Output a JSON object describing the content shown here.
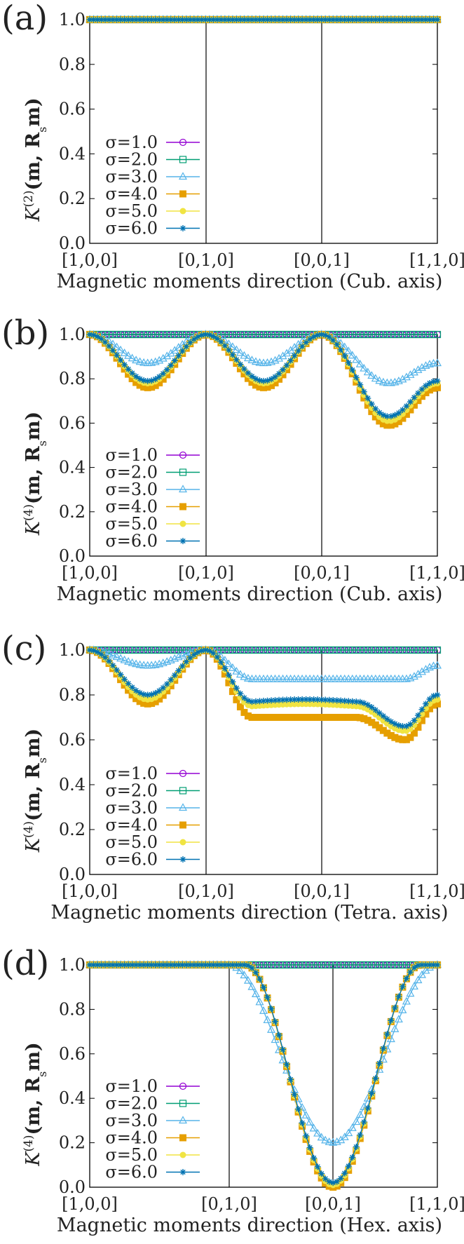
{
  "figure": {
    "legend_prefix": "σ=",
    "series_names": [
      "1.0",
      "2.0",
      "3.0",
      "4.0",
      "5.0",
      "6.0"
    ],
    "series_colors": [
      "#9400d3",
      "#009e73",
      "#56b4e9",
      "#e69f00",
      "#f0e442",
      "#0072b2"
    ],
    "series_markers": [
      "circle-open",
      "square-open",
      "triangle-open",
      "square-filled",
      "circle-filled",
      "star"
    ]
  },
  "chart_data": [
    {
      "type": "line",
      "panel_label": "(a)",
      "title": "",
      "xlabel": "Magnetic moments direction (Cub. axis)",
      "ylabel": "K(2)(m, Rsm)",
      "ylabel_main": "K",
      "ylabel_sup": "(2)",
      "ylabel_args": "(m, R",
      "ylabel_sub": "s",
      "ylabel_tail": "m)",
      "ylim": [
        0,
        1.0
      ],
      "yticks": [
        "0.0",
        "0.2",
        "0.4",
        "0.6",
        "0.8",
        "1.0"
      ],
      "xticks": [
        "[1,0,0]",
        "[0,1,0]",
        "[0,0,1]",
        "[1,1,0]"
      ],
      "segments": [
        "cub",
        "cub",
        "cub"
      ],
      "series": [
        {
          "name": "σ=1.0",
          "dips": [
            [
              1.0,
              1.0,
              1.0
            ]
          ]
        },
        {
          "name": "σ=2.0",
          "dips": [
            [
              1.0,
              1.0,
              1.0
            ]
          ]
        },
        {
          "name": "σ=3.0",
          "dips": [
            [
              1.0,
              1.0,
              1.0
            ]
          ]
        },
        {
          "name": "σ=4.0",
          "dips": [
            [
              1.0,
              1.0,
              1.0
            ]
          ]
        },
        {
          "name": "σ=5.0",
          "dips": [
            [
              1.0,
              1.0,
              1.0
            ]
          ]
        },
        {
          "name": "σ=6.0",
          "dips": [
            [
              1.0,
              1.0,
              1.0
            ]
          ]
        }
      ],
      "legend": "left"
    },
    {
      "type": "line",
      "panel_label": "(b)",
      "title": "",
      "xlabel": "Magnetic moments direction (Cub. axis)",
      "ylabel": "K(4)(m, Rsm)",
      "ylabel_main": "K",
      "ylabel_sup": "(4)",
      "ylabel_args": "(m, R",
      "ylabel_sub": "s",
      "ylabel_tail": "m)",
      "ylim": [
        0,
        1.0
      ],
      "yticks": [
        "0.0",
        "0.2",
        "0.4",
        "0.6",
        "0.8",
        "1.0"
      ],
      "xticks": [
        "[1,0,0]",
        "[0,1,0]",
        "[0,0,1]",
        "[1,1,0]"
      ],
      "segments_kind": "cub",
      "series": [
        {
          "name": "σ=1.0",
          "seg_min": [
            1.0,
            1.0,
            1.0
          ],
          "seg_end": 1.0
        },
        {
          "name": "σ=2.0",
          "seg_min": [
            1.0,
            1.0,
            1.0
          ],
          "seg_end": 1.0
        },
        {
          "name": "σ=3.0",
          "seg_min": [
            0.87,
            0.87,
            0.78
          ],
          "seg_end": 0.87
        },
        {
          "name": "σ=4.0",
          "seg_min": [
            0.76,
            0.76,
            0.59
          ],
          "seg_end": 0.76
        },
        {
          "name": "σ=5.0",
          "seg_min": [
            0.78,
            0.78,
            0.61
          ],
          "seg_end": 0.78
        },
        {
          "name": "σ=6.0",
          "seg_min": [
            0.79,
            0.79,
            0.63
          ],
          "seg_end": 0.79
        }
      ],
      "legend": "left"
    },
    {
      "type": "line",
      "panel_label": "(c)",
      "title": "",
      "xlabel": "Magnetic moments direction (Tetra. axis)",
      "ylabel": "K(4)(m, Rsm)",
      "ylabel_main": "K",
      "ylabel_sup": "(4)",
      "ylabel_args": "(m, R",
      "ylabel_sub": "s",
      "ylabel_tail": "m)",
      "ylim": [
        0,
        1.0
      ],
      "yticks": [
        "0.0",
        "0.2",
        "0.4",
        "0.6",
        "0.8",
        "1.0"
      ],
      "xticks": [
        "[1,0,0]",
        "[0,1,0]",
        "[0,0,1]",
        "[1,1,0]"
      ],
      "series": [
        {
          "name": "σ=1.0",
          "seg1_min": 1.0,
          "plateau_min": 1.0,
          "plateau_mid": 1.0,
          "seg3_min": 1.0,
          "end": 1.0
        },
        {
          "name": "σ=2.0",
          "seg1_min": 1.0,
          "plateau_min": 1.0,
          "plateau_mid": 1.0,
          "seg3_min": 1.0,
          "end": 1.0
        },
        {
          "name": "σ=3.0",
          "seg1_min": 0.93,
          "plateau_min": 0.87,
          "plateau_mid": 0.87,
          "seg3_min": 0.87,
          "end": 0.93
        },
        {
          "name": "σ=4.0",
          "seg1_min": 0.76,
          "plateau_min": 0.7,
          "plateau_mid": 0.7,
          "seg3_min": 0.6,
          "end": 0.76
        },
        {
          "name": "σ=5.0",
          "seg1_min": 0.78,
          "plateau_min": 0.75,
          "plateau_mid": 0.76,
          "seg3_min": 0.64,
          "end": 0.78
        },
        {
          "name": "σ=6.0",
          "seg1_min": 0.8,
          "plateau_min": 0.77,
          "plateau_mid": 0.78,
          "seg3_min": 0.66,
          "end": 0.8
        }
      ],
      "legend": "left"
    },
    {
      "type": "line",
      "panel_label": "(d)",
      "title": "",
      "xlabel": "Magnetic moments direction (Hex. axis)",
      "ylabel": "K(4)(m, Rsm)",
      "ylabel_main": "K",
      "ylabel_sup": "(4)",
      "ylabel_args": "(m, R",
      "ylabel_sub": "s",
      "ylabel_tail": "m)",
      "ylim": [
        0,
        1.0
      ],
      "yticks": [
        "0.0",
        "0.2",
        "0.4",
        "0.6",
        "0.8",
        "1.0"
      ],
      "xticks": [
        "[1,0,0]",
        "[0,1,0]",
        "[0,0,1]",
        "[1,1,0]"
      ],
      "series": [
        {
          "name": "σ=1.0",
          "min": 1.0
        },
        {
          "name": "σ=2.0",
          "min": 1.0
        },
        {
          "name": "σ=3.0",
          "min": 0.2
        },
        {
          "name": "σ=4.0",
          "min": 0.0
        },
        {
          "name": "σ=5.0",
          "min": 0.01
        },
        {
          "name": "σ=6.0",
          "min": 0.02
        }
      ],
      "legend": "left"
    }
  ]
}
